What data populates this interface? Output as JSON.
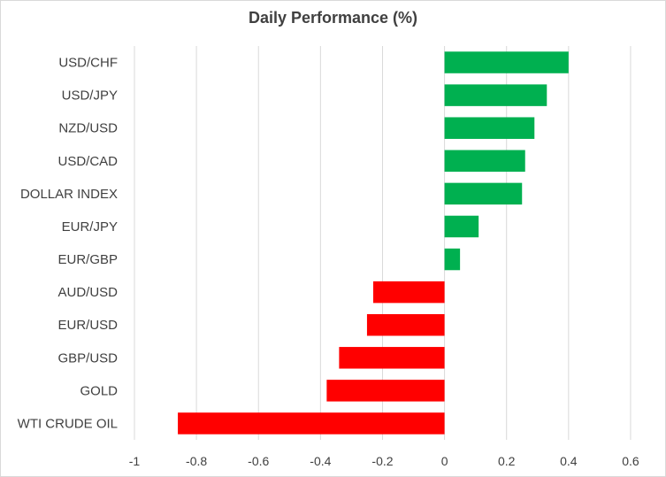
{
  "chart_data": {
    "type": "bar",
    "orientation": "horizontal",
    "title": "Daily Performance (%)",
    "xlabel": "",
    "ylabel": "",
    "xlim": [
      -1,
      0.7
    ],
    "x_ticks": [
      "-1",
      "-0.8",
      "-0.6",
      "-0.4",
      "-0.2",
      "0",
      "0.2",
      "0.4",
      "0.6"
    ],
    "grid": "vertical",
    "legend": "none",
    "categories": [
      "USD/CHF",
      "USD/JPY",
      "NZD/USD",
      "USD/CAD",
      "DOLLAR INDEX",
      "EUR/JPY",
      "EUR/GBP",
      "AUD/USD",
      "EUR/USD",
      "GBP/USD",
      "GOLD",
      "WTI CRUDE OIL"
    ],
    "values": [
      0.4,
      0.33,
      0.29,
      0.26,
      0.25,
      0.11,
      0.05,
      -0.23,
      -0.25,
      -0.34,
      -0.38,
      -0.86
    ],
    "colors": {
      "positive": "#00b050",
      "negative": "#ff0000",
      "grid": "#d9d9d9",
      "text": "#404040"
    }
  }
}
